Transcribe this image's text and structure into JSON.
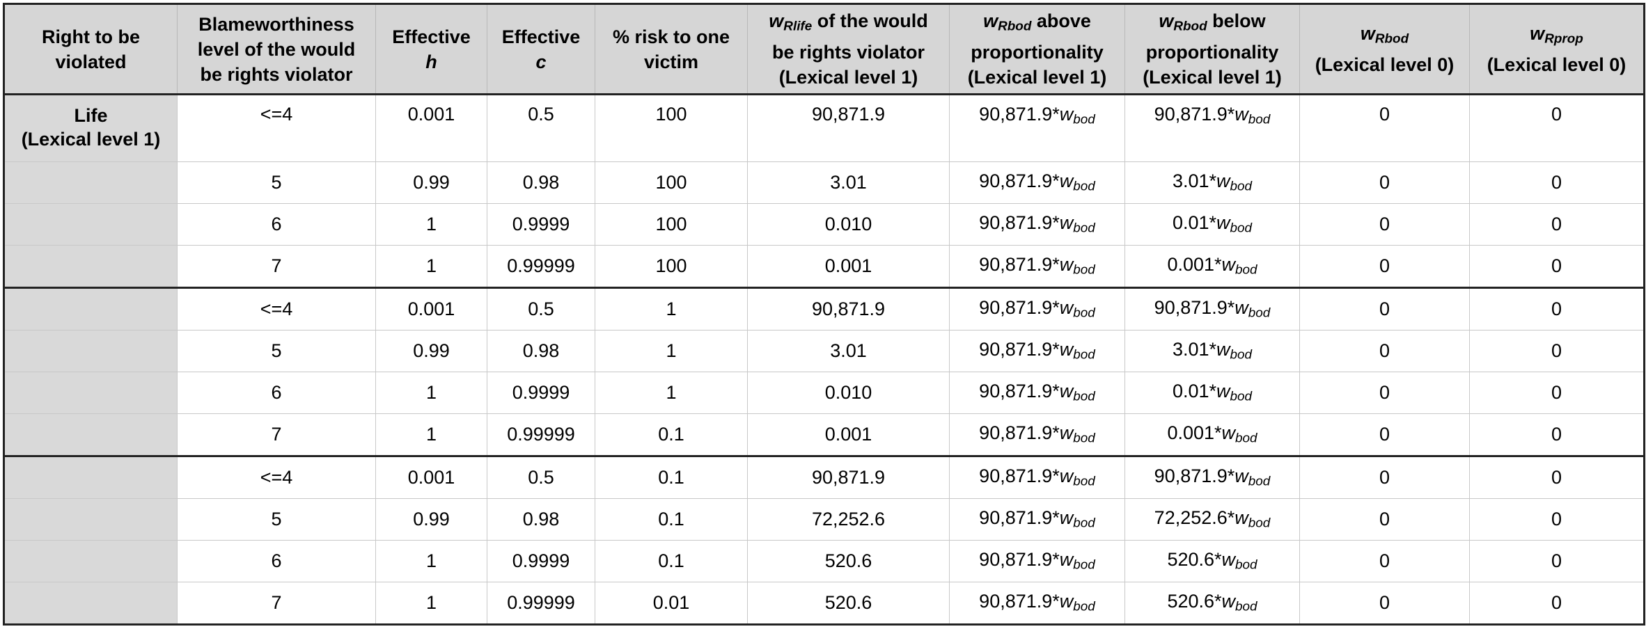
{
  "table": {
    "headers": [
      {
        "lines": [
          "Right to be",
          "violated"
        ]
      },
      {
        "lines": [
          "Blameworthiness",
          "level of the would",
          "be rights violator"
        ]
      },
      {
        "pre": "Effective",
        "sym": "h"
      },
      {
        "pre": "Effective",
        "sym": "c"
      },
      {
        "lines": [
          "% risk to one",
          "victim"
        ]
      },
      {
        "w": "w",
        "sub": "Rlife",
        "after": " of the would",
        "lines": [
          "be rights violator",
          "(Lexical level 1)"
        ]
      },
      {
        "w": "w",
        "sub": "Rbod",
        "after": " above",
        "lines": [
          "proportionality",
          "(Lexical level 1)"
        ]
      },
      {
        "w": "w",
        "sub": "Rbod",
        "after": " below",
        "lines": [
          "proportionality",
          "(Lexical level 1)"
        ]
      },
      {
        "w": "w",
        "sub": "Rbod",
        "after": "",
        "lines": [
          "(Lexical level 0)"
        ]
      },
      {
        "w": "w",
        "sub": "Rprop",
        "after": "",
        "lines": [
          "(Lexical level 0)"
        ]
      }
    ],
    "right_label": [
      "Life",
      "(Lexical level 1)"
    ],
    "wbod": {
      "w": "w",
      "sub": "bod"
    },
    "rows": [
      {
        "blame": "<=4",
        "h": "0.001",
        "c": "0.5",
        "risk": "100",
        "wrlife": "90,871.9",
        "above": "90,871.9*",
        "below": "90,871.9*",
        "wrbod0": "0",
        "wrprop0": "0"
      },
      {
        "blame": "5",
        "h": "0.99",
        "c": "0.98",
        "risk": "100",
        "wrlife": "3.01",
        "above": "90,871.9*",
        "below": "3.01*",
        "wrbod0": "0",
        "wrprop0": "0"
      },
      {
        "blame": "6",
        "h": "1",
        "c": "0.9999",
        "risk": "100",
        "wrlife": "0.010",
        "above": "90,871.9*",
        "below": "0.01*",
        "wrbod0": "0",
        "wrprop0": "0"
      },
      {
        "blame": "7",
        "h": "1",
        "c": "0.99999",
        "risk": "100",
        "wrlife": "0.001",
        "above": "90,871.9*",
        "below": "0.001*",
        "wrbod0": "0",
        "wrprop0": "0"
      },
      {
        "blame": "<=4",
        "h": "0.001",
        "c": "0.5",
        "risk": "1",
        "wrlife": "90,871.9",
        "above": "90,871.9*",
        "below": "90,871.9*",
        "wrbod0": "0",
        "wrprop0": "0"
      },
      {
        "blame": "5",
        "h": "0.99",
        "c": "0.98",
        "risk": "1",
        "wrlife": "3.01",
        "above": "90,871.9*",
        "below": "3.01*",
        "wrbod0": "0",
        "wrprop0": "0"
      },
      {
        "blame": "6",
        "h": "1",
        "c": "0.9999",
        "risk": "1",
        "wrlife": "0.010",
        "above": "90,871.9*",
        "below": "0.01*",
        "wrbod0": "0",
        "wrprop0": "0"
      },
      {
        "blame": "7",
        "h": "1",
        "c": "0.99999",
        "risk": "0.1",
        "wrlife": "0.001",
        "above": "90,871.9*",
        "below": "0.001*",
        "wrbod0": "0",
        "wrprop0": "0"
      },
      {
        "blame": "<=4",
        "h": "0.001",
        "c": "0.5",
        "risk": "0.1",
        "wrlife": "90,871.9",
        "above": "90,871.9*",
        "below": "90,871.9*",
        "wrbod0": "0",
        "wrprop0": "0"
      },
      {
        "blame": "5",
        "h": "0.99",
        "c": "0.98",
        "risk": "0.1",
        "wrlife": "72,252.6",
        "above": "90,871.9*",
        "below": "72,252.6*",
        "wrbod0": "0",
        "wrprop0": "0"
      },
      {
        "blame": "6",
        "h": "1",
        "c": "0.9999",
        "risk": "0.1",
        "wrlife": "520.6",
        "above": "90,871.9*",
        "below": "520.6*",
        "wrbod0": "0",
        "wrprop0": "0"
      },
      {
        "blame": "7",
        "h": "1",
        "c": "0.99999",
        "risk": "0.01",
        "wrlife": "520.6",
        "above": "90,871.9*",
        "below": "520.6*",
        "wrbod0": "0",
        "wrprop0": "0"
      }
    ]
  }
}
